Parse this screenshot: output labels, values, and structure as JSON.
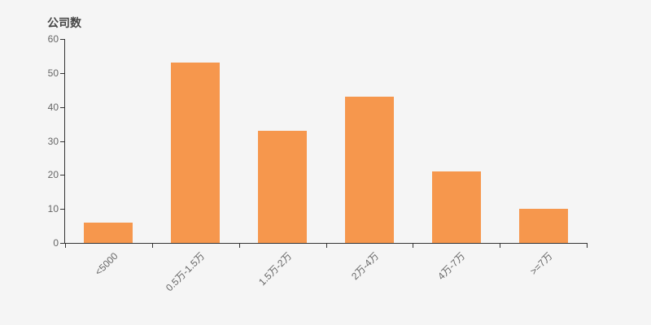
{
  "chart_data": {
    "type": "bar",
    "title": "公司数",
    "categories": [
      "<5000",
      "0.5万-1.5万",
      "1.5万-2万",
      "2万-4万",
      "4万-7万",
      ">=7万"
    ],
    "values": [
      6,
      53,
      33,
      43,
      21,
      10
    ],
    "xlabel": "",
    "ylabel": "公司数",
    "ylim": [
      0,
      60
    ],
    "yticks": [
      0,
      10,
      20,
      30,
      40,
      50,
      60
    ],
    "x_label_rotation": 45,
    "grid": "off",
    "legend_position": "none",
    "colors": {
      "bar": "#f6974d",
      "background": "#f5f5f5",
      "axis_line": "#333333",
      "tick_label": "#666666",
      "title": "#464646"
    }
  }
}
